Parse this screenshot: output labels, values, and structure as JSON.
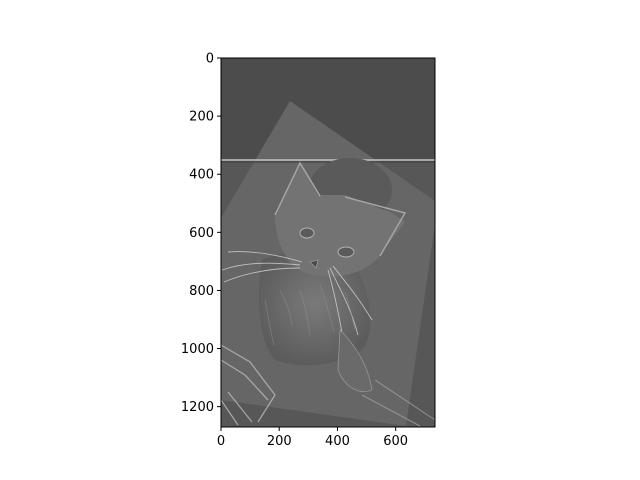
{
  "chart_data": {
    "type": "image",
    "colormap": "gray",
    "title": "",
    "xlabel": "",
    "ylabel": "",
    "xlim": [
      0,
      735
    ],
    "ylim": [
      1270,
      0
    ],
    "y_inverted": true,
    "xticks": [
      0,
      200,
      400,
      600
    ],
    "yticks": [
      0,
      200,
      400,
      600,
      800,
      1000,
      1200
    ],
    "xtick_labels": [
      "0",
      "200",
      "400",
      "600"
    ],
    "ytick_labels": [
      "0",
      "200",
      "400",
      "600",
      "800",
      "1000",
      "1200"
    ],
    "grid": false,
    "legend": "none",
    "image_content": "grayscale edge-filtered image of a cat looking up, inside a rotated lighter square, with a horizontal edge line near y=350",
    "colors": {
      "background_dark": "#4f4f4f",
      "background_mid": "#5a5a5a",
      "square_light": "#6f6f6f",
      "edge_light": "#bdbdbd",
      "axis": "#000000"
    }
  }
}
